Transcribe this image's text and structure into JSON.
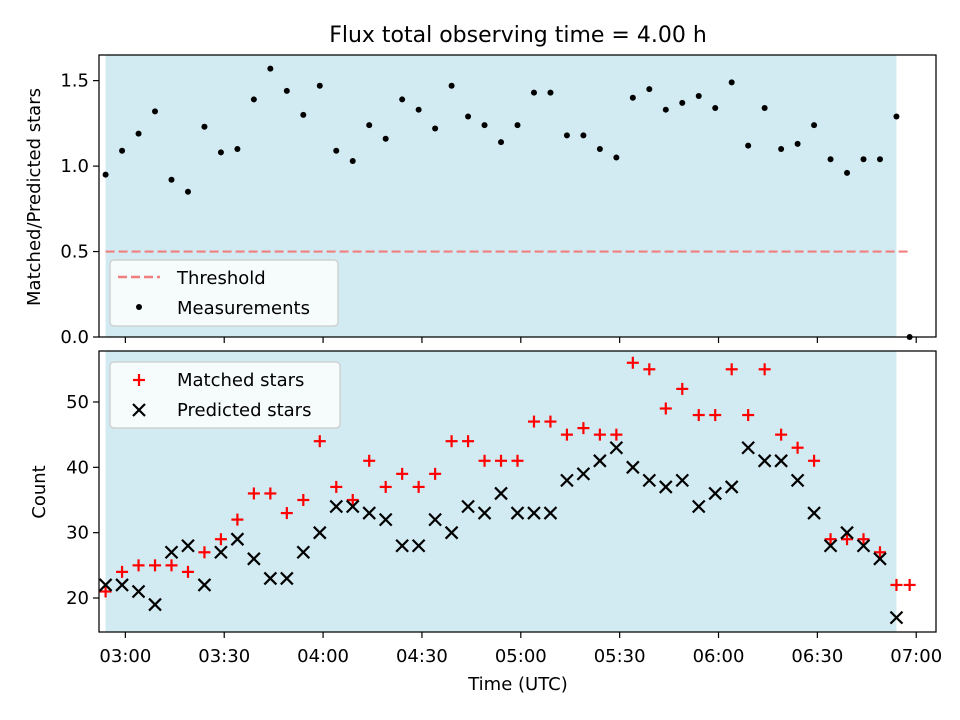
{
  "chart_data": [
    {
      "type": "scatter",
      "title": "Flux total observing time = 4.00 h",
      "xlabel": "",
      "ylabel": "Matched/Predicted stars",
      "ylim": [
        0,
        1.65
      ],
      "xlim": [
        "02:52",
        "07:06"
      ],
      "shaded_span": [
        "02:54",
        "06:54"
      ],
      "shade_color": "#add8e6",
      "yticks": [
        "0.0",
        "0.5",
        "1.0",
        "1.5"
      ],
      "legend": {
        "position": "lower-left",
        "entries": [
          "Threshold",
          "Measurements"
        ]
      },
      "threshold": {
        "name": "Threshold",
        "value": 0.5,
        "x": [
          "02:54",
          "06:58"
        ],
        "color": "#f08080"
      },
      "series": [
        {
          "name": "Measurements",
          "color": "#000000",
          "x": [
            "02:54",
            "02:59",
            "03:04",
            "03:09",
            "03:14",
            "03:19",
            "03:24",
            "03:29",
            "03:34",
            "03:39",
            "03:44",
            "03:49",
            "03:54",
            "03:59",
            "04:04",
            "04:09",
            "04:14",
            "04:19",
            "04:24",
            "04:29",
            "04:34",
            "04:39",
            "04:44",
            "04:49",
            "04:54",
            "04:59",
            "05:04",
            "05:09",
            "05:14",
            "05:19",
            "05:24",
            "05:29",
            "05:34",
            "05:39",
            "05:44",
            "05:49",
            "05:54",
            "05:59",
            "06:04",
            "06:09",
            "06:14",
            "06:19",
            "06:24",
            "06:29",
            "06:34",
            "06:39",
            "06:44",
            "06:49",
            "06:54",
            "06:58"
          ],
          "values": [
            0.95,
            1.09,
            1.19,
            1.32,
            0.92,
            0.85,
            1.23,
            1.08,
            1.1,
            1.39,
            1.57,
            1.44,
            1.3,
            1.47,
            1.09,
            1.03,
            1.24,
            1.16,
            1.39,
            1.33,
            1.22,
            1.47,
            1.29,
            1.24,
            1.14,
            1.24,
            1.43,
            1.43,
            1.18,
            1.18,
            1.1,
            1.05,
            1.4,
            1.45,
            1.33,
            1.37,
            1.41,
            1.34,
            1.49,
            1.12,
            1.34,
            1.1,
            1.13,
            1.24,
            1.04,
            0.96,
            1.04,
            1.04,
            1.29,
            0.0
          ]
        }
      ]
    },
    {
      "type": "scatter",
      "title": "",
      "xlabel": "Time (UTC)",
      "ylabel": "Count",
      "ylim": [
        14.8,
        57.8
      ],
      "xlim": [
        "02:52",
        "07:06"
      ],
      "shaded_span": [
        "02:54",
        "06:54"
      ],
      "shade_color": "#add8e6",
      "yticks": [
        "20",
        "30",
        "40",
        "50"
      ],
      "xticks": [
        "03:00",
        "03:30",
        "04:00",
        "04:30",
        "05:00",
        "05:30",
        "06:00",
        "06:30",
        "07:00"
      ],
      "legend": {
        "position": "upper-left",
        "entries": [
          "Matched stars",
          "Predicted stars"
        ]
      },
      "x": [
        "02:54",
        "02:59",
        "03:04",
        "03:09",
        "03:14",
        "03:19",
        "03:24",
        "03:29",
        "03:34",
        "03:39",
        "03:44",
        "03:49",
        "03:54",
        "03:59",
        "04:04",
        "04:09",
        "04:14",
        "04:19",
        "04:24",
        "04:29",
        "04:34",
        "04:39",
        "04:44",
        "04:49",
        "04:54",
        "04:59",
        "05:04",
        "05:09",
        "05:14",
        "05:19",
        "05:24",
        "05:29",
        "05:34",
        "05:39",
        "05:44",
        "05:49",
        "05:54",
        "05:59",
        "06:04",
        "06:09",
        "06:14",
        "06:19",
        "06:24",
        "06:29",
        "06:34",
        "06:39",
        "06:44",
        "06:49",
        "06:54",
        "06:58"
      ],
      "series": [
        {
          "name": "Matched stars",
          "marker": "plus",
          "color": "#ff0000",
          "values": [
            21,
            24,
            25,
            25,
            25,
            24,
            27,
            29,
            32,
            36,
            36,
            33,
            35,
            44,
            37,
            35,
            41,
            37,
            39,
            37,
            39,
            44,
            44,
            41,
            41,
            41,
            47,
            47,
            45,
            46,
            45,
            45,
            56,
            55,
            49,
            52,
            48,
            48,
            55,
            48,
            55,
            45,
            43,
            41,
            29,
            29,
            29,
            27,
            22,
            22
          ]
        },
        {
          "name": "Predicted stars",
          "marker": "x",
          "color": "#000000",
          "values": [
            22,
            22,
            21,
            19,
            27,
            28,
            22,
            27,
            29,
            26,
            23,
            23,
            27,
            30,
            34,
            34,
            33,
            32,
            28,
            28,
            32,
            30,
            34,
            33,
            36,
            33,
            33,
            33,
            38,
            39,
            41,
            43,
            40,
            38,
            37,
            38,
            34,
            36,
            37,
            43,
            41,
            41,
            38,
            33,
            28,
            30,
            28,
            26,
            17,
            null
          ]
        }
      ]
    }
  ]
}
